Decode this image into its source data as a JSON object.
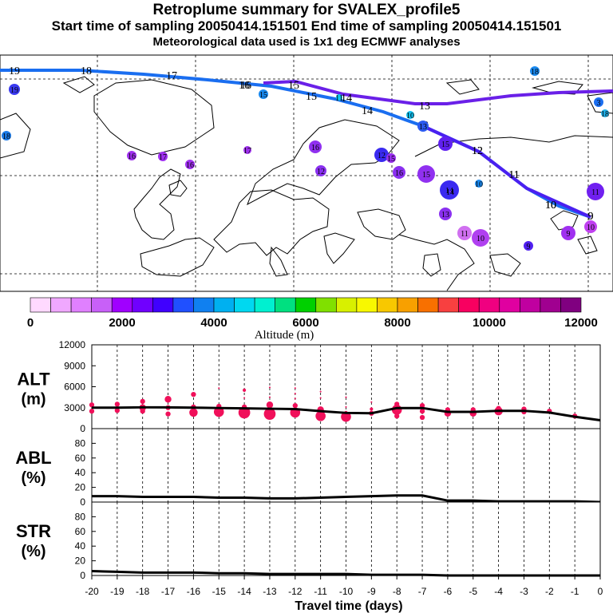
{
  "header": {
    "title": "Retroplume summary for SVALEX_profile5",
    "line2": "Start time of sampling 20050414.151501     End time of sampling 20050414.151501",
    "line3": "Meteorological data used is 1x1 deg ECMWF analyses"
  },
  "colorbar": {
    "ticks": [
      "0",
      "2000",
      "4000",
      "6000",
      "8000",
      "10000",
      "12000"
    ],
    "label": "Altitude (m)",
    "colors": [
      "#ffd9ff",
      "#f0a8ff",
      "#e080ff",
      "#c860f8",
      "#a000ff",
      "#7000ff",
      "#4000ff",
      "#2050ff",
      "#1080f0",
      "#00b0f0",
      "#00d8f0",
      "#00f0d0",
      "#00e080",
      "#00d000",
      "#80e000",
      "#d8f000",
      "#f8f800",
      "#f8c800",
      "#f8a000",
      "#f87000",
      "#f84040",
      "#f80060",
      "#f00080",
      "#e000a0",
      "#c000a0",
      "#a00090",
      "#800080"
    ]
  },
  "map": {
    "trajectories": [
      {
        "name": "trajectory-1",
        "color": "#1a6ef0",
        "labels": [
          "19",
          "18",
          "17",
          "16",
          "15",
          "14",
          "13",
          "12",
          "11",
          "10",
          "9"
        ]
      },
      {
        "name": "trajectory-2",
        "color": "#6a20e8",
        "labels": [
          "16",
          "15",
          "14",
          "13"
        ]
      },
      {
        "name": "trajectory-3",
        "color": "#4a20f0",
        "labels": [
          "12",
          "11",
          "10",
          "9"
        ]
      }
    ],
    "clusters": [
      {
        "label": "19",
        "color": "#3a3af0"
      },
      {
        "label": "18",
        "color": "#1a7ae8"
      },
      {
        "label": "18",
        "color": "#1a8af0"
      },
      {
        "label": "17",
        "color": "#a030f0"
      },
      {
        "label": "16",
        "color": "#a030f0"
      },
      {
        "label": "17",
        "color": "#a030f0"
      },
      {
        "label": "16",
        "color": "#a030f0"
      },
      {
        "label": "16",
        "color": "#9030f0"
      },
      {
        "label": "15",
        "color": "#1a8af0"
      },
      {
        "label": "11",
        "color": "#10c8f0"
      },
      {
        "label": "10",
        "color": "#10c0f0"
      },
      {
        "label": "13",
        "color": "#2a5af0"
      },
      {
        "label": "12",
        "color": "#3a2af0"
      },
      {
        "label": "14",
        "color": "#3a2af0"
      },
      {
        "label": "15",
        "color": "#9030f0"
      },
      {
        "label": "16",
        "color": "#8a30f0"
      },
      {
        "label": "15",
        "color": "#9a30f0"
      },
      {
        "label": "14",
        "color": "#8a30f0"
      },
      {
        "label": "13",
        "color": "#8a30f0"
      },
      {
        "label": "12",
        "color": "#8a30f0"
      },
      {
        "label": "11",
        "color": "#d070f0"
      },
      {
        "label": "10",
        "color": "#b040f0"
      },
      {
        "label": "9",
        "color": "#5020f0"
      },
      {
        "label": "9",
        "color": "#a030f0"
      },
      {
        "label": "10",
        "color": "#c040f0"
      },
      {
        "label": "11",
        "color": "#7020f0"
      },
      {
        "label": "3",
        "color": "#1a6ef0"
      },
      {
        "label": "18",
        "color": "#20b0e8"
      },
      {
        "label": "10",
        "color": "#1a8af0"
      },
      {
        "label": "15",
        "color": "#6020f0"
      }
    ]
  },
  "panels": {
    "alt": {
      "name": "ALT",
      "unit": "(m)",
      "yticks": [
        "0",
        "3000",
        "6000",
        "9000",
        "12000"
      ]
    },
    "abl": {
      "name": "ABL",
      "unit": "(%)",
      "yticks": [
        "0",
        "20",
        "40",
        "60",
        "80"
      ]
    },
    "str": {
      "name": "STR",
      "unit": "(%)",
      "yticks": [
        "0",
        "20",
        "40",
        "60",
        "80"
      ]
    }
  },
  "xaxis": {
    "ticks": [
      "-20",
      "-19",
      "-18",
      "-17",
      "-16",
      "-15",
      "-14",
      "-13",
      "-12",
      "-11",
      "-10",
      "-9",
      "-8",
      "-7",
      "-6",
      "-5",
      "-4",
      "-3",
      "-2",
      "-1",
      "0"
    ],
    "label": "Travel time (days)"
  },
  "chart_data": {
    "type": "line",
    "x": [
      -20,
      -19,
      -18,
      -17,
      -16,
      -15,
      -14,
      -13,
      -12,
      -11,
      -10,
      -9,
      -8,
      -7,
      -6,
      -5,
      -4,
      -3,
      -2,
      -1,
      0
    ],
    "xlim": [
      -20,
      0
    ],
    "xlabel": "Travel time (days)",
    "series": [
      {
        "name": "ALT (m)",
        "ylim": [
          0,
          12000
        ],
        "values": [
          3000,
          3000,
          3050,
          3050,
          3000,
          2950,
          2900,
          2850,
          2800,
          2500,
          2250,
          2200,
          2950,
          2950,
          2400,
          2400,
          2550,
          2550,
          2300,
          1700,
          1200
        ]
      },
      {
        "name": "ABL (%)",
        "ylim": [
          0,
          100
        ],
        "values": [
          8,
          8,
          7,
          7,
          7,
          6,
          6,
          5,
          5,
          6,
          7,
          8,
          9,
          9,
          2,
          2,
          1,
          1,
          1,
          1,
          0
        ]
      },
      {
        "name": "STR (%)",
        "ylim": [
          0,
          100
        ],
        "values": [
          6,
          5,
          4,
          4,
          4,
          3,
          3,
          2,
          2,
          2,
          2,
          1,
          1,
          1,
          0,
          0,
          0,
          0,
          0,
          0,
          0
        ]
      }
    ],
    "alt_clusters": [
      {
        "x": -20,
        "y": 3400,
        "s": 3
      },
      {
        "x": -20,
        "y": 2500,
        "s": 3
      },
      {
        "x": -19,
        "y": 3500,
        "s": 3
      },
      {
        "x": -19,
        "y": 2600,
        "s": 3
      },
      {
        "x": -18,
        "y": 3900,
        "s": 3
      },
      {
        "x": -18,
        "y": 3000,
        "s": 4
      },
      {
        "x": -18,
        "y": 2500,
        "s": 3
      },
      {
        "x": -17,
        "y": 4200,
        "s": 4
      },
      {
        "x": -17,
        "y": 3000,
        "s": 3
      },
      {
        "x": -17,
        "y": 2100,
        "s": 3
      },
      {
        "x": -16,
        "y": 4900,
        "s": 3
      },
      {
        "x": -16,
        "y": 3100,
        "s": 3
      },
      {
        "x": -16,
        "y": 2300,
        "s": 5
      },
      {
        "x": -15,
        "y": 5800,
        "s": 1
      },
      {
        "x": -15,
        "y": 3200,
        "s": 3
      },
      {
        "x": -15,
        "y": 2400,
        "s": 6
      },
      {
        "x": -14,
        "y": 5500,
        "s": 2
      },
      {
        "x": -14,
        "y": 4400,
        "s": 1
      },
      {
        "x": -14,
        "y": 3100,
        "s": 3
      },
      {
        "x": -14,
        "y": 2300,
        "s": 7
      },
      {
        "x": -13,
        "y": 5900,
        "s": 1
      },
      {
        "x": -13,
        "y": 4500,
        "s": 1
      },
      {
        "x": -13,
        "y": 3400,
        "s": 4
      },
      {
        "x": -13,
        "y": 2100,
        "s": 7
      },
      {
        "x": -12,
        "y": 5800,
        "s": 1
      },
      {
        "x": -12,
        "y": 5000,
        "s": 1
      },
      {
        "x": -12,
        "y": 4300,
        "s": 1
      },
      {
        "x": -12,
        "y": 3300,
        "s": 3
      },
      {
        "x": -12,
        "y": 2300,
        "s": 6
      },
      {
        "x": -11,
        "y": 5300,
        "s": 1
      },
      {
        "x": -11,
        "y": 4400,
        "s": 1
      },
      {
        "x": -11,
        "y": 2700,
        "s": 4
      },
      {
        "x": -11,
        "y": 1800,
        "s": 6
      },
      {
        "x": -10,
        "y": 4500,
        "s": 1
      },
      {
        "x": -10,
        "y": 3100,
        "s": 1
      },
      {
        "x": -10,
        "y": 2300,
        "s": 2
      },
      {
        "x": -10,
        "y": 1700,
        "s": 6
      },
      {
        "x": -9,
        "y": 3800,
        "s": 1
      },
      {
        "x": -9,
        "y": 2800,
        "s": 2
      },
      {
        "x": -9,
        "y": 2200,
        "s": 3
      },
      {
        "x": -8,
        "y": 3500,
        "s": 3
      },
      {
        "x": -8,
        "y": 2700,
        "s": 6
      },
      {
        "x": -8,
        "y": 1800,
        "s": 3
      },
      {
        "x": -7,
        "y": 3300,
        "s": 3
      },
      {
        "x": -7,
        "y": 2500,
        "s": 3
      },
      {
        "x": -7,
        "y": 1600,
        "s": 3
      },
      {
        "x": -6,
        "y": 2700,
        "s": 3
      },
      {
        "x": -6,
        "y": 2200,
        "s": 4
      },
      {
        "x": -5,
        "y": 2700,
        "s": 3
      },
      {
        "x": -5,
        "y": 2200,
        "s": 4
      },
      {
        "x": -4,
        "y": 2900,
        "s": 3
      },
      {
        "x": -4,
        "y": 2500,
        "s": 5
      },
      {
        "x": -3,
        "y": 2800,
        "s": 3
      },
      {
        "x": -3,
        "y": 2400,
        "s": 3
      },
      {
        "x": -2,
        "y": 2500,
        "s": 3
      },
      {
        "x": -1,
        "y": 1800,
        "s": 3
      }
    ]
  }
}
